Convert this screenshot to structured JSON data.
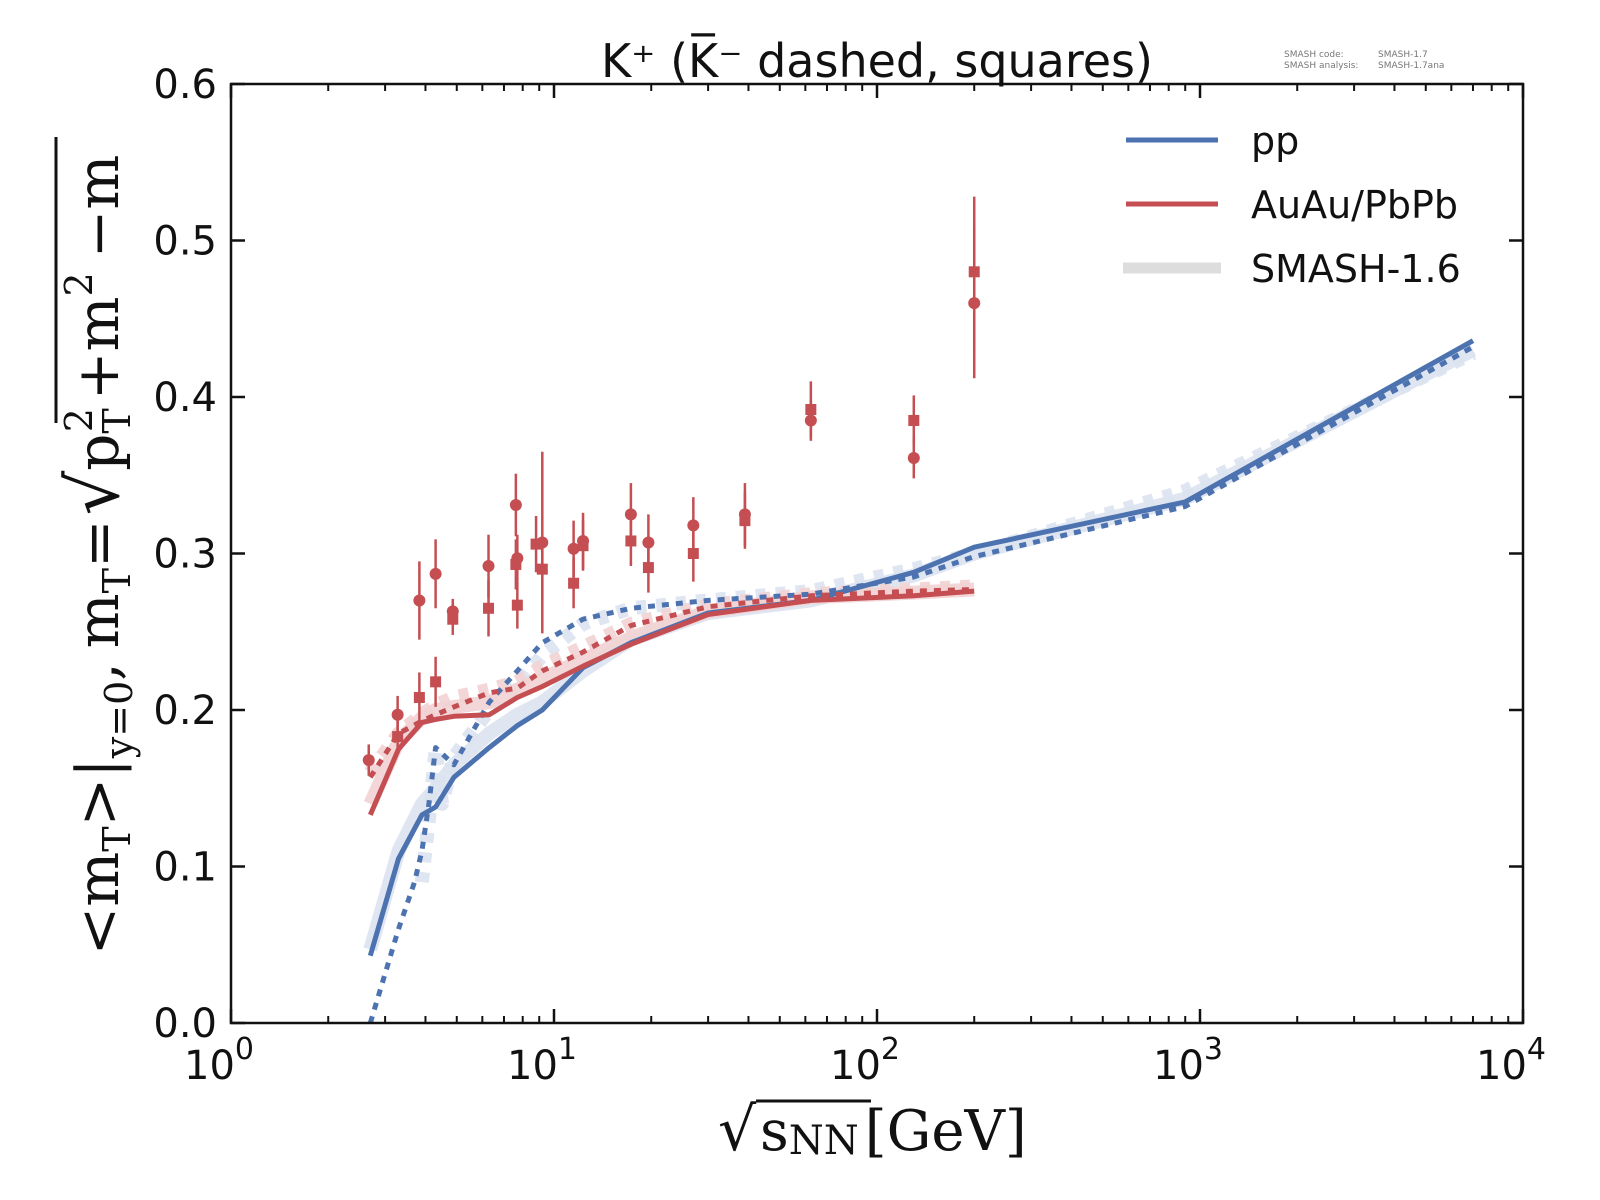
{
  "chart_data": {
    "type": "line",
    "title": "K⁺ (K̅⁻ dashed, squares)",
    "xlabel": "√s_NN [GeV]",
    "ylabel": "<m_T>|_{y=0},  m_T = √(p_T² + m²) − m",
    "ylabel_parts": {
      "lhs": "<m",
      "lhs_sub": "T",
      "lhs_close": ">|",
      "cond_sub": "y=0",
      "comma": ",",
      "def_lhs": "m",
      "def_lhs_sub": "T",
      "eq": "=",
      "root_term1": "p",
      "root_term1_sup": "2",
      "root_term1_sub": "T",
      "root_plus": "+",
      "root_term2": "m",
      "root_term2_sup": "2",
      "minus_term": "−m"
    },
    "xlabel_parts": {
      "var": "s",
      "var_sub": "NN",
      "unit": "[GeV]"
    },
    "xscale": "log",
    "xlim": [
      1,
      10000
    ],
    "ylim": [
      0.0,
      0.6
    ],
    "xticks": [
      {
        "value": 1,
        "base": "10",
        "exp": "0"
      },
      {
        "value": 10,
        "base": "10",
        "exp": "1"
      },
      {
        "value": 100,
        "base": "10",
        "exp": "2"
      },
      {
        "value": 1000,
        "base": "10",
        "exp": "3"
      },
      {
        "value": 10000,
        "base": "10",
        "exp": "4"
      }
    ],
    "yticks": [
      {
        "value": 0.0,
        "label": "0.0"
      },
      {
        "value": 0.1,
        "label": "0.1"
      },
      {
        "value": 0.2,
        "label": "0.2"
      },
      {
        "value": 0.3,
        "label": "0.3"
      },
      {
        "value": 0.4,
        "label": "0.4"
      },
      {
        "value": 0.5,
        "label": "0.5"
      },
      {
        "value": 0.6,
        "label": "0.6"
      }
    ],
    "grid": false,
    "legend_position": "top-right",
    "legend": [
      {
        "label": "pp",
        "color": "#4C72B0",
        "style": "solid"
      },
      {
        "label": "AuAu/PbPb",
        "color": "#C44E52",
        "style": "solid"
      },
      {
        "label": "SMASH-1.6",
        "color": "#DDDDDD",
        "style": "wide-pale"
      }
    ],
    "series": [
      {
        "name": "pp K+ (SMASH-1.7)",
        "color": "#4C72B0",
        "style": "solid",
        "x": [
          2.7,
          3.3,
          3.9,
          4.3,
          4.9,
          6.3,
          7.7,
          9.2,
          12.3,
          17.3,
          30,
          62.4,
          130,
          200,
          900,
          7000
        ],
        "y": [
          0.043,
          0.105,
          0.133,
          0.138,
          0.157,
          0.176,
          0.19,
          0.2,
          0.227,
          0.243,
          0.262,
          0.27,
          0.288,
          0.304,
          0.333,
          0.436
        ]
      },
      {
        "name": "pp K- (SMASH-1.7)",
        "color": "#4C72B0",
        "style": "dotted",
        "x": [
          2.7,
          3.3,
          3.7,
          3.9,
          4.1,
          4.3,
          4.9,
          6.3,
          7.7,
          9.2,
          12.3,
          17.3,
          30,
          62.4,
          130,
          200,
          900,
          7000
        ],
        "y": [
          0.0,
          0.06,
          0.09,
          0.11,
          0.14,
          0.176,
          0.165,
          0.205,
          0.225,
          0.243,
          0.258,
          0.265,
          0.27,
          0.274,
          0.285,
          0.298,
          0.33,
          0.432
        ]
      },
      {
        "name": "AuAu/PbPb K+ (SMASH-1.7)",
        "color": "#C44E52",
        "style": "solid",
        "x": [
          2.7,
          3.3,
          3.9,
          4.3,
          4.9,
          6.3,
          7.7,
          9.2,
          12.3,
          17.3,
          30,
          62.4,
          130,
          200
        ],
        "y": [
          0.133,
          0.175,
          0.192,
          0.194,
          0.196,
          0.197,
          0.208,
          0.215,
          0.228,
          0.242,
          0.261,
          0.27,
          0.273,
          0.276
        ]
      },
      {
        "name": "AuAu/PbPb K- (SMASH-1.7)",
        "color": "#C44E52",
        "style": "dotted",
        "x": [
          2.7,
          3.3,
          3.9,
          4.3,
          4.9,
          6.3,
          7.7,
          9.2,
          12.3,
          17.3,
          30,
          62.4,
          130,
          200
        ],
        "y": [
          0.157,
          0.185,
          0.193,
          0.197,
          0.202,
          0.211,
          0.214,
          0.225,
          0.237,
          0.254,
          0.266,
          0.273,
          0.276,
          0.277
        ]
      },
      {
        "name": "pp K+ (SMASH-1.6)",
        "color": "#DCE3F0",
        "style": "wide-pale",
        "x": [
          2.7,
          3.3,
          3.9,
          4.3,
          4.9,
          6.3,
          7.7,
          9.2,
          12.3,
          17.3,
          30,
          62.4,
          130,
          200,
          900,
          7000
        ],
        "y": [
          0.047,
          0.11,
          0.14,
          0.15,
          0.165,
          0.185,
          0.197,
          0.205,
          0.225,
          0.245,
          0.262,
          0.27,
          0.286,
          0.3,
          0.335,
          0.43
        ]
      },
      {
        "name": "pp K- (SMASH-1.6)",
        "color": "#DCE3F0",
        "style": "wide-pale-dotted",
        "x": [
          3.9,
          4.1,
          4.3,
          4.5,
          4.9,
          6.3,
          7.7,
          9.2,
          12.3,
          17.3,
          30,
          62.4,
          130,
          200,
          900,
          7000
        ],
        "y": [
          0.09,
          0.13,
          0.175,
          0.14,
          0.17,
          0.2,
          0.215,
          0.235,
          0.255,
          0.265,
          0.27,
          0.276,
          0.29,
          0.3,
          0.34,
          0.428
        ]
      },
      {
        "name": "AuAu/PbPb K+ (SMASH-1.6)",
        "color": "#F2D3D4",
        "style": "wide-pale",
        "x": [
          2.7,
          3.3,
          3.9,
          4.3,
          4.9,
          6.3,
          7.7,
          9.2,
          12.3,
          17.3,
          30,
          62.4,
          130,
          200
        ],
        "y": [
          0.14,
          0.18,
          0.195,
          0.2,
          0.202,
          0.205,
          0.213,
          0.22,
          0.232,
          0.246,
          0.263,
          0.272,
          0.275,
          0.277
        ]
      },
      {
        "name": "AuAu/PbPb K- (SMASH-1.6)",
        "color": "#F2D3D4",
        "style": "wide-pale-dotted",
        "x": [
          2.7,
          3.3,
          3.9,
          4.3,
          4.9,
          6.3,
          7.7,
          9.2,
          12.3,
          17.3,
          30,
          62.4,
          130,
          200
        ],
        "y": [
          0.16,
          0.185,
          0.197,
          0.203,
          0.208,
          0.213,
          0.218,
          0.228,
          0.24,
          0.255,
          0.267,
          0.274,
          0.277,
          0.279
        ]
      }
    ],
    "experimental_data": {
      "color": "#C44E52",
      "kplus_circles": [
        {
          "x": 2.67,
          "y": 0.168,
          "err": 0.01
        },
        {
          "x": 3.28,
          "y": 0.197,
          "err": 0.012
        },
        {
          "x": 3.83,
          "y": 0.27,
          "err": 0.025
        },
        {
          "x": 4.3,
          "y": 0.287,
          "err": 0.022
        },
        {
          "x": 4.86,
          "y": 0.263,
          "err": 0.008
        },
        {
          "x": 6.27,
          "y": 0.292,
          "err": 0.02
        },
        {
          "x": 7.62,
          "y": 0.331,
          "err": 0.02
        },
        {
          "x": 7.7,
          "y": 0.297,
          "err": 0.015
        },
        {
          "x": 9.2,
          "y": 0.307,
          "err": 0.058
        },
        {
          "x": 11.5,
          "y": 0.303,
          "err": 0.018
        },
        {
          "x": 12.3,
          "y": 0.308,
          "err": 0.018
        },
        {
          "x": 17.3,
          "y": 0.325,
          "err": 0.02
        },
        {
          "x": 19.6,
          "y": 0.307,
          "err": 0.018
        },
        {
          "x": 27,
          "y": 0.318,
          "err": 0.018
        },
        {
          "x": 39,
          "y": 0.325,
          "err": 0.02
        },
        {
          "x": 62.4,
          "y": 0.385,
          "err": 0.013
        },
        {
          "x": 130,
          "y": 0.361,
          "err": 0.013
        },
        {
          "x": 200,
          "y": 0.46,
          "err": 0.048
        }
      ],
      "kminus_squares": [
        {
          "x": 3.28,
          "y": 0.183,
          "err": 0.01
        },
        {
          "x": 3.83,
          "y": 0.208,
          "err": 0.016
        },
        {
          "x": 4.3,
          "y": 0.218,
          "err": 0.016
        },
        {
          "x": 4.86,
          "y": 0.258,
          "err": 0.01
        },
        {
          "x": 6.27,
          "y": 0.265,
          "err": 0.018
        },
        {
          "x": 7.62,
          "y": 0.293,
          "err": 0.016
        },
        {
          "x": 7.7,
          "y": 0.267,
          "err": 0.015
        },
        {
          "x": 8.8,
          "y": 0.306,
          "err": 0.018
        },
        {
          "x": 9.2,
          "y": 0.29,
          "err": 0.02
        },
        {
          "x": 11.5,
          "y": 0.281,
          "err": 0.016
        },
        {
          "x": 12.3,
          "y": 0.305,
          "err": 0.016
        },
        {
          "x": 17.3,
          "y": 0.308,
          "err": 0.016
        },
        {
          "x": 19.6,
          "y": 0.291,
          "err": 0.016
        },
        {
          "x": 27,
          "y": 0.3,
          "err": 0.018
        },
        {
          "x": 39,
          "y": 0.321,
          "err": 0.018
        },
        {
          "x": 62.4,
          "y": 0.392,
          "err": 0.018
        },
        {
          "x": 130,
          "y": 0.385,
          "err": 0.016
        },
        {
          "x": 200,
          "y": 0.48,
          "err": 0.048
        }
      ]
    }
  },
  "corner_note": {
    "line1_label": "SMASH code:",
    "line1_value": "SMASH-1.7",
    "line2_label": "SMASH analysis:",
    "line2_value": "SMASH-1.7ana"
  }
}
